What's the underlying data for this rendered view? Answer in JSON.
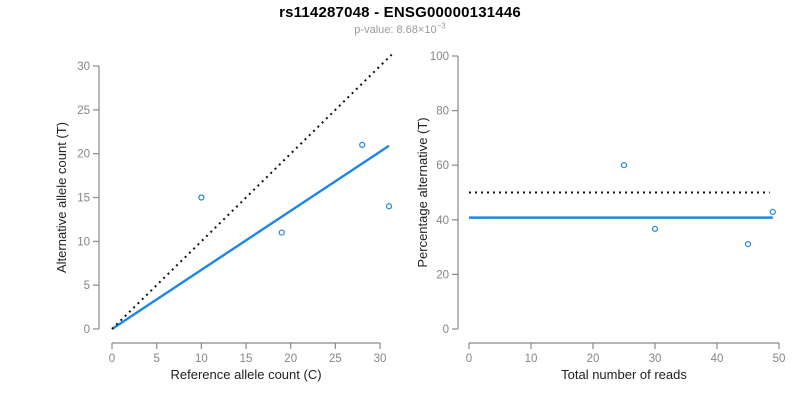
{
  "title": "rs114287048 - ENSG00000131446",
  "subtitle": {
    "prefix": "p-value:",
    "base": "8.68×10",
    "exponent": "−3"
  },
  "colors": {
    "accent_blue": "#1E86E8",
    "identity_black": "#111111",
    "axis_gray": "#8a8a8a",
    "tick_label_gray": "#858585",
    "axis_title": "#222222",
    "title": "#000000",
    "subtitle_gray": "#9a9a9a"
  },
  "chart_data": [
    {
      "type": "scatter",
      "panel": "left",
      "xlabel": "Reference allele count (C)",
      "ylabel": "Alternative allele count (T)",
      "xlim": [
        0,
        31
      ],
      "ylim": [
        0,
        30
      ],
      "xticks": [
        0,
        5,
        10,
        15,
        20,
        25,
        30
      ],
      "yticks": [
        0,
        5,
        10,
        15,
        20,
        25,
        30
      ],
      "grid": false,
      "points": [
        [
          10,
          15
        ],
        [
          19,
          11
        ],
        [
          28,
          21
        ],
        [
          31,
          14
        ]
      ],
      "point_style": {
        "shape": "open-circle",
        "color_key": "accent_blue"
      },
      "lines": [
        {
          "name": "fit-line",
          "style": "solid",
          "color_key": "accent_blue",
          "from": [
            0,
            0
          ],
          "to": [
            31,
            20.9
          ]
        },
        {
          "name": "identity-line",
          "style": "dotted",
          "color_key": "identity_black",
          "from": [
            0,
            0
          ],
          "to": [
            31.3,
            31.3
          ]
        }
      ]
    },
    {
      "type": "scatter",
      "panel": "right",
      "xlabel": "Total number of reads",
      "ylabel": "Percentage alternative (T)",
      "xlim": [
        0,
        50
      ],
      "ylim": [
        0,
        100
      ],
      "xticks": [
        0,
        10,
        20,
        30,
        40,
        50
      ],
      "yticks": [
        0,
        20,
        40,
        60,
        80,
        100
      ],
      "grid": false,
      "points": [
        [
          25,
          60
        ],
        [
          30,
          36.7
        ],
        [
          45,
          31.1
        ],
        [
          49,
          42.9
        ]
      ],
      "point_style": {
        "shape": "open-circle",
        "color_key": "accent_blue"
      },
      "lines": [
        {
          "name": "mean-percentage-line",
          "style": "solid",
          "color_key": "accent_blue",
          "from": [
            0,
            40.8
          ],
          "to": [
            49,
            40.8
          ]
        },
        {
          "name": "fifty-percent-line",
          "style": "dotted",
          "color_key": "identity_black",
          "from": [
            0,
            50
          ],
          "to": [
            48.5,
            50
          ]
        }
      ]
    }
  ]
}
